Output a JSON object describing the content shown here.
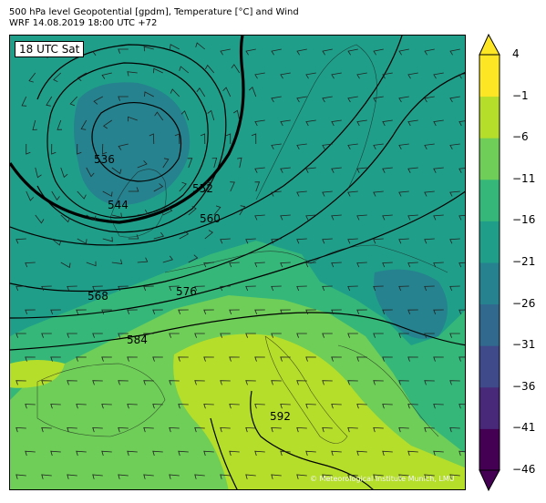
{
  "header": {
    "title_line1": "500 hPa level Geopotential [gpdm], Temperature [°C] and Wind",
    "title_line2": "WRF 14.08.2019 18:00 UTC +72"
  },
  "map": {
    "time_label": "18 UTC Sat",
    "copyright": "© Meteorological Institute Munich, LMU",
    "contour_labels": [
      "536",
      "544",
      "552",
      "560",
      "568",
      "576",
      "584",
      "592"
    ]
  },
  "colorbar": {
    "tick_labels": [
      "4",
      "−1",
      "−6",
      "−11",
      "−16",
      "−21",
      "−26",
      "−31",
      "−36",
      "−41",
      "−46"
    ],
    "colors": [
      "#440154",
      "#482878",
      "#3e4a89",
      "#31688e",
      "#26828e",
      "#1f9e89",
      "#35b779",
      "#6ece58",
      "#b5de2b",
      "#fde725"
    ],
    "over_color": "#fde725",
    "under_color": "#440154"
  },
  "field_colors": {
    "deep_low": "#26828e",
    "cold": "#1f9e89",
    "mid": "#35b779",
    "warm": "#6ece58",
    "hot": "#b5de2b"
  }
}
